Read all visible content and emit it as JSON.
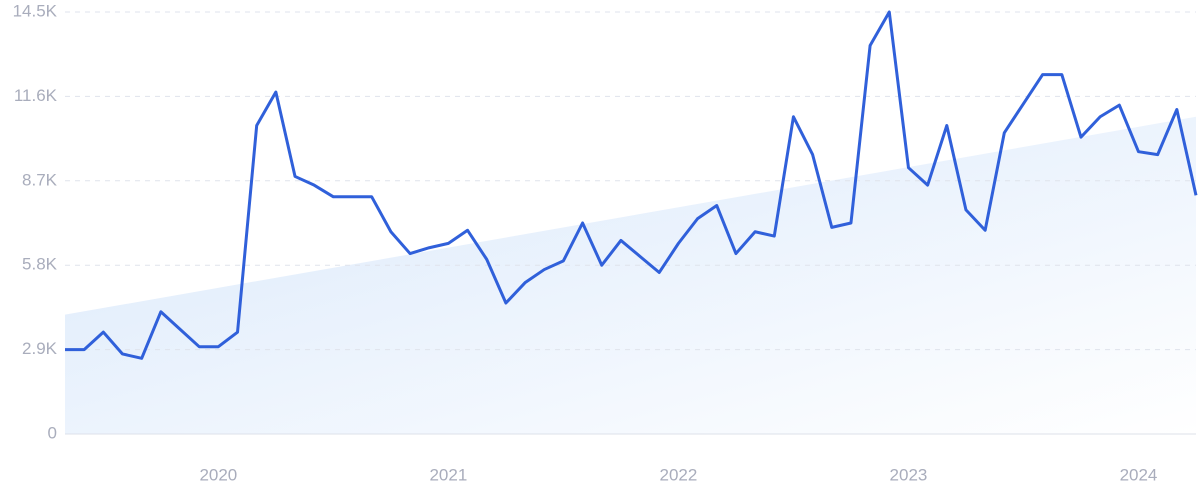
{
  "chart_data": {
    "type": "line",
    "categories": [
      null,
      null,
      null,
      null,
      null,
      null,
      null,
      null,
      "2020",
      null,
      null,
      null,
      null,
      null,
      null,
      null,
      null,
      null,
      null,
      null,
      "2021",
      null,
      null,
      null,
      null,
      null,
      null,
      null,
      null,
      null,
      null,
      null,
      "2022",
      null,
      null,
      null,
      null,
      null,
      null,
      null,
      null,
      null,
      null,
      null,
      "2023",
      null,
      null,
      null,
      null,
      null,
      null,
      null,
      null,
      null,
      null,
      null,
      "2024",
      null,
      null,
      null
    ],
    "series": [
      {
        "color": "#3060da",
        "values": [
          2900,
          2900,
          3500,
          2750,
          2600,
          4200,
          3600,
          3000,
          3000,
          3500,
          10600,
          11750,
          8850,
          8550,
          8150,
          8150,
          8150,
          6950,
          6200,
          6400,
          6550,
          7000,
          6000,
          4500,
          5200,
          5650,
          5950,
          7250,
          5800,
          6650,
          6100,
          5550,
          6550,
          7400,
          7850,
          6200,
          6950,
          6800,
          10900,
          9600,
          7100,
          7250,
          13350,
          14500,
          9150,
          8550,
          10600,
          7700,
          7000,
          10350,
          11350,
          12350,
          12350,
          10200,
          10900,
          11300,
          9700,
          9600,
          11150,
          8200
        ]
      }
    ],
    "trend": [
      4100,
      10900
    ],
    "trend_color": "#d9e8fb",
    "ylim": [
      0,
      14500
    ],
    "yticks": [
      0,
      {
        "value": 2900,
        "label": "2.9K"
      },
      {
        "value": 5800,
        "label": "5.8K"
      },
      {
        "value": 8700,
        "label": "8.7K"
      },
      {
        "value": 11600,
        "label": "11.6K"
      },
      {
        "value": 14500,
        "label": "14.5K"
      }
    ],
    "grid": true
  }
}
